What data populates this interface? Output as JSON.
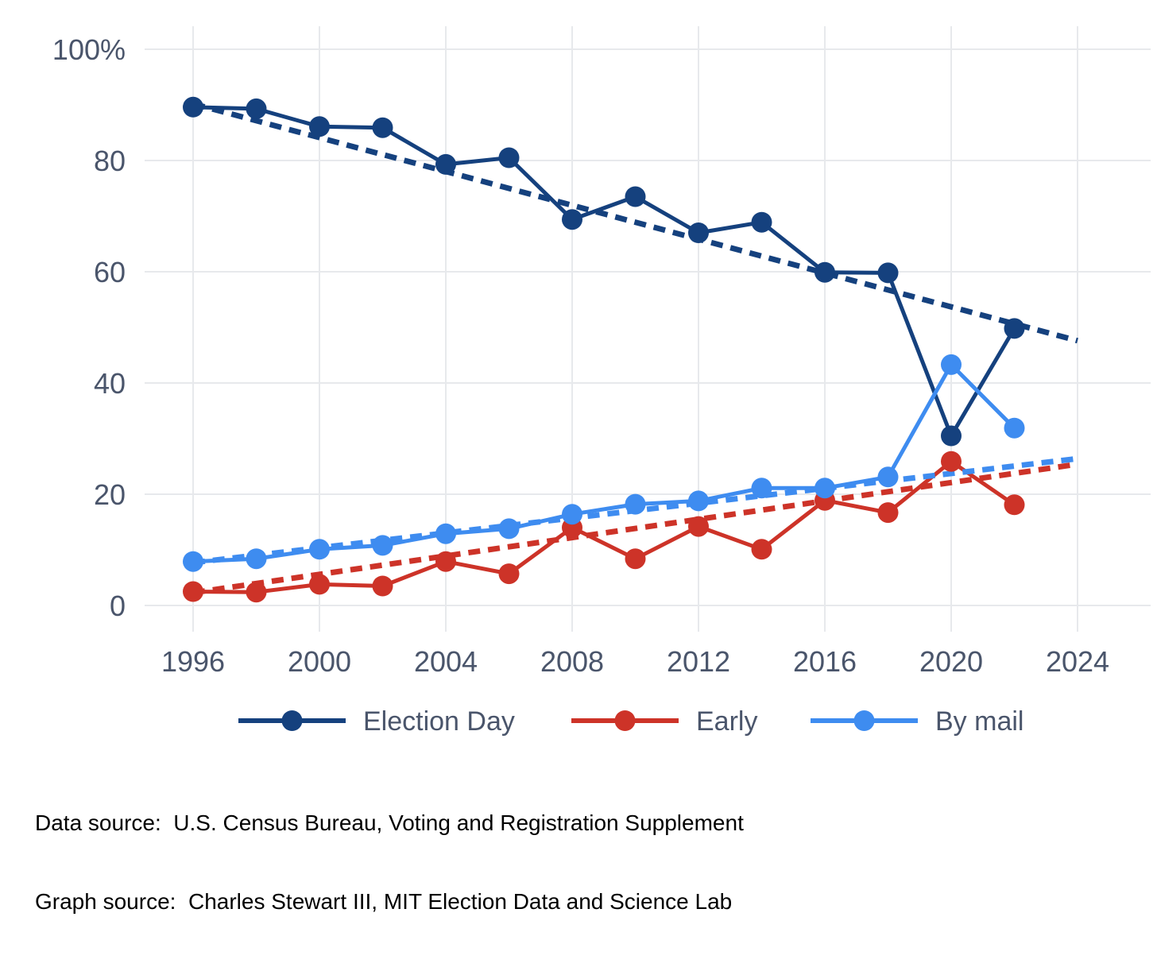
{
  "chart_data": {
    "type": "line",
    "title": "",
    "xlabel": "",
    "ylabel": "",
    "x": [
      1996,
      1998,
      2000,
      2002,
      2004,
      2006,
      2008,
      2010,
      2012,
      2014,
      2016,
      2018,
      2020,
      2022
    ],
    "series": [
      {
        "name": "Election Day",
        "color": "#15417e",
        "values": [
          89.6,
          89.3,
          86.1,
          85.9,
          79.3,
          80.5,
          69.4,
          73.5,
          67.0,
          68.9,
          59.9,
          59.8,
          30.5,
          49.8
        ],
        "trend": {
          "x0": 1996,
          "v0": 90.2,
          "x1": 2024,
          "v1": 47.6
        }
      },
      {
        "name": "Early",
        "color": "#cd3328",
        "values": [
          2.5,
          2.4,
          3.8,
          3.5,
          7.9,
          5.7,
          14.0,
          8.4,
          14.2,
          10.1,
          18.9,
          16.7,
          25.9,
          18.1
        ],
        "trend": {
          "x0": 1996,
          "v0": 2.3,
          "x1": 2024,
          "v1": 25.4
        }
      },
      {
        "name": "By mail",
        "color": "#3e8cf0",
        "values": [
          7.9,
          8.4,
          10.1,
          10.8,
          12.9,
          13.8,
          16.4,
          18.2,
          18.8,
          21.1,
          21.1,
          23.1,
          43.3,
          31.9
        ],
        "trend": {
          "x0": 1996,
          "v0": 7.7,
          "x1": 2024,
          "v1": 26.4
        }
      }
    ],
    "xticks": [
      1996,
      2000,
      2004,
      2008,
      2012,
      2016,
      2020,
      2024
    ],
    "yticks": [
      {
        "value": 0,
        "label": "0"
      },
      {
        "value": 20,
        "label": "20"
      },
      {
        "value": 40,
        "label": "40"
      },
      {
        "value": 60,
        "label": "60"
      },
      {
        "value": 80,
        "label": "80"
      },
      {
        "value": 100,
        "label": "100%"
      }
    ],
    "xlim": [
      1996,
      2024
    ],
    "ylim": [
      0,
      100
    ],
    "grid": true,
    "legend_position": "bottom",
    "trend_style": "dashed linear trend line per series, 1996 to 2024"
  },
  "legend": {
    "items": [
      "Election Day",
      "Early",
      "By mail"
    ]
  },
  "footer": {
    "data_source": "Data source:  U.S. Census Bureau, Voting and Registration Supplement",
    "graph_source": "Graph source:  Charles Stewart III, MIT Election Data and Science Lab"
  },
  "colors": {
    "background": "#ffffff",
    "grid": "#e7e9ec",
    "axis_text": "#4a556b",
    "footer_text": "#000000"
  }
}
